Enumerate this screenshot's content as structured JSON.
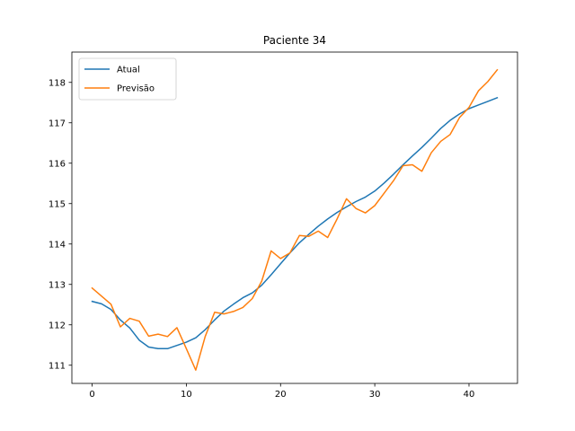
{
  "chart_data": {
    "type": "line",
    "title": "Paciente 34",
    "xlabel": "",
    "ylabel": "",
    "xlim": [
      -2.15,
      45.15
    ],
    "ylim": [
      110.55,
      118.75
    ],
    "xticks": [
      0,
      10,
      20,
      30,
      40
    ],
    "yticks": [
      111,
      112,
      113,
      114,
      115,
      116,
      117,
      118
    ],
    "grid": false,
    "legend_position": "top-left",
    "x": [
      0,
      1,
      2,
      3,
      4,
      5,
      6,
      7,
      8,
      9,
      10,
      11,
      12,
      13,
      14,
      15,
      16,
      17,
      18,
      19,
      20,
      21,
      22,
      23,
      24,
      25,
      26,
      27,
      28,
      29,
      30,
      31,
      32,
      33,
      34,
      35,
      36,
      37,
      38,
      39,
      40,
      41,
      42,
      43
    ],
    "series": [
      {
        "name": "Atual",
        "color": "#1f77b4",
        "values": [
          112.58,
          112.52,
          112.38,
          112.12,
          111.92,
          111.62,
          111.45,
          111.41,
          111.41,
          111.49,
          111.57,
          111.68,
          111.88,
          112.12,
          112.34,
          112.51,
          112.67,
          112.79,
          112.98,
          113.24,
          113.51,
          113.78,
          114.03,
          114.24,
          114.44,
          114.62,
          114.78,
          114.92,
          115.05,
          115.16,
          115.31,
          115.51,
          115.73,
          115.96,
          116.18,
          116.39,
          116.62,
          116.86,
          117.06,
          117.22,
          117.35,
          117.44,
          117.53,
          117.62
        ]
      },
      {
        "name": "Previsão",
        "color": "#ff7f0e",
        "values": [
          112.91,
          112.71,
          112.51,
          111.95,
          112.16,
          112.09,
          111.72,
          111.77,
          111.71,
          111.93,
          111.41,
          110.88,
          111.71,
          112.31,
          112.27,
          112.33,
          112.43,
          112.65,
          113.08,
          113.83,
          113.64,
          113.78,
          114.21,
          114.19,
          114.32,
          114.16,
          114.62,
          115.12,
          114.88,
          114.77,
          114.95,
          115.26,
          115.57,
          115.94,
          115.96,
          115.8,
          116.26,
          116.54,
          116.71,
          117.13,
          117.38,
          117.79,
          118.02,
          118.31
        ]
      }
    ]
  }
}
